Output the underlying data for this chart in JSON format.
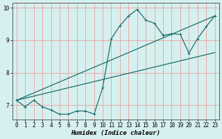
{
  "title": "",
  "xlabel": "Humidex (Indice chaleur)",
  "ylabel": "",
  "bg_color": "#d6f0ef",
  "line_color": "#1a6e6a",
  "grid_color": "#e8a0a0",
  "xlim": [
    -0.5,
    23.5
  ],
  "ylim": [
    6.55,
    10.15
  ],
  "yticks": [
    7,
    8,
    9,
    10
  ],
  "xticks": [
    0,
    1,
    2,
    3,
    4,
    5,
    6,
    7,
    8,
    9,
    10,
    11,
    12,
    13,
    14,
    15,
    16,
    17,
    18,
    19,
    20,
    21,
    22,
    23
  ],
  "curve_x": [
    0,
    1,
    2,
    3,
    4,
    5,
    6,
    7,
    8,
    9,
    10,
    11,
    12,
    13,
    14,
    15,
    16,
    17,
    18,
    19,
    20,
    21,
    22,
    23
  ],
  "curve_y": [
    7.15,
    6.95,
    7.15,
    6.95,
    6.85,
    6.72,
    6.72,
    6.82,
    6.82,
    6.72,
    7.55,
    9.05,
    9.45,
    9.75,
    9.95,
    9.62,
    9.52,
    9.15,
    9.2,
    9.18,
    8.6,
    9.05,
    9.42,
    9.75
  ],
  "line1_x": [
    0,
    23
  ],
  "line1_y": [
    7.15,
    9.75
  ],
  "line2_x": [
    0,
    23
  ],
  "line2_y": [
    7.15,
    8.62
  ],
  "marker_size": 2.5,
  "linewidth": 0.9,
  "tick_fontsize": 5.5,
  "xlabel_fontsize": 6.5
}
